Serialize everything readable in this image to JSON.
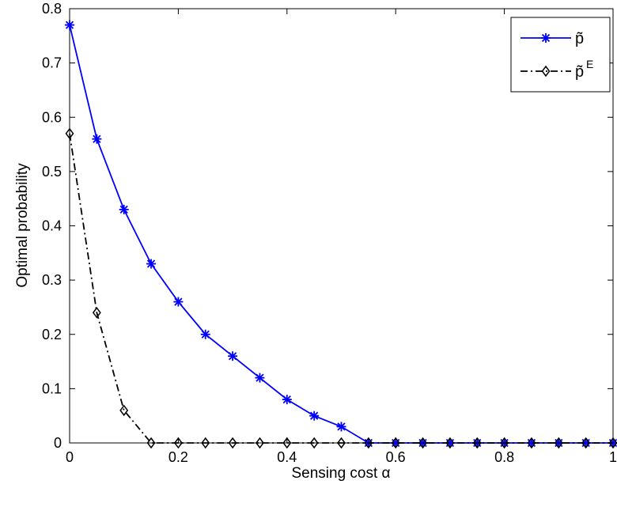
{
  "chart_data": {
    "type": "line",
    "title": "",
    "xlabel": "Sensing cost α",
    "ylabel": "Optimal probability",
    "xlim": [
      0,
      1
    ],
    "ylim": [
      0,
      0.8
    ],
    "x_ticks": [
      "0",
      "0.2",
      "0.4",
      "0.6",
      "0.8",
      "1"
    ],
    "y_ticks": [
      "0",
      "0.1",
      "0.2",
      "0.3",
      "0.4",
      "0.5",
      "0.6",
      "0.7",
      "0.8"
    ],
    "grid": false,
    "legend_position": "top-right",
    "x": [
      0,
      0.05,
      0.1,
      0.15,
      0.2,
      0.25,
      0.3,
      0.35,
      0.4,
      0.45,
      0.5,
      0.55,
      0.6,
      0.65,
      0.7,
      0.75,
      0.8,
      0.85,
      0.9,
      0.95,
      1.0
    ],
    "series": [
      {
        "name": "p̃",
        "sup": "",
        "color": "#0000ff",
        "line_style": "solid",
        "marker": "star",
        "values": [
          0.77,
          0.56,
          0.43,
          0.33,
          0.26,
          0.2,
          0.16,
          0.12,
          0.08,
          0.05,
          0.03,
          0.0,
          0.0,
          0.0,
          0.0,
          0.0,
          0.0,
          0.0,
          0.0,
          0.0,
          0.0
        ]
      },
      {
        "name": "p̃",
        "sup": "E",
        "color": "#000000",
        "line_style": "dash-dot",
        "marker": "diamond",
        "values": [
          0.57,
          0.24,
          0.06,
          0.0,
          0.0,
          0.0,
          0.0,
          0.0,
          0.0,
          0.0,
          0.0,
          0.0,
          0.0,
          0.0,
          0.0,
          0.0,
          0.0,
          0.0,
          0.0,
          0.0,
          0.0
        ]
      }
    ]
  }
}
